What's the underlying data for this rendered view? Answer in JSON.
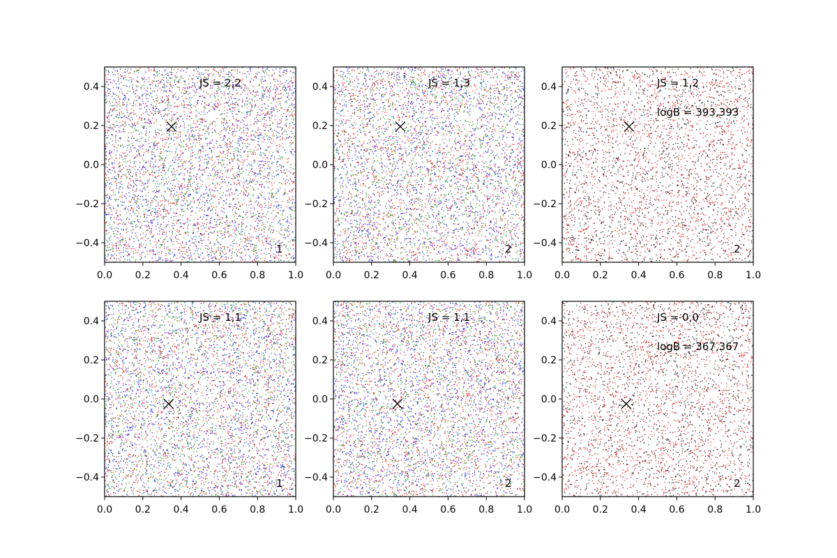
{
  "colors": {
    "red": "#ff0000",
    "green": "#008000",
    "blue": "#0000ff",
    "black": "#000000",
    "marker": "#000000"
  },
  "chart_data": [
    {
      "type": "scatter",
      "panel": "top-left",
      "xlim": [
        0.0,
        1.0
      ],
      "ylim": [
        -0.5,
        0.5
      ],
      "x_ticks": [
        0.0,
        0.2,
        0.4,
        0.6,
        0.8,
        1.0
      ],
      "y_ticks": [
        -0.4,
        -0.2,
        0.0,
        0.2,
        0.4
      ],
      "x_tick_labels": [
        "0.0",
        "0.2",
        "0.4",
        "0.6",
        "0.8",
        "1.0"
      ],
      "y_tick_labels": [
        "−0.4",
        "−0.2",
        "0.0",
        "0.2",
        "0.4"
      ],
      "point_colors": [
        "red",
        "green",
        "blue"
      ],
      "point_count_approx": 5000,
      "marker": {
        "x": 0.35,
        "y": 0.195,
        "symbol": "x"
      },
      "annotations": [
        "JS = 2,2"
      ],
      "corner_label": "1",
      "grid": false
    },
    {
      "type": "scatter",
      "panel": "top-middle",
      "xlim": [
        0.0,
        1.0
      ],
      "ylim": [
        -0.5,
        0.5
      ],
      "x_ticks": [
        0.0,
        0.2,
        0.4,
        0.6,
        0.8,
        1.0
      ],
      "y_ticks": [
        -0.4,
        -0.2,
        0.0,
        0.2,
        0.4
      ],
      "x_tick_labels": [
        "0.0",
        "0.2",
        "0.4",
        "0.6",
        "0.8",
        "1.0"
      ],
      "y_tick_labels": [
        "−0.4",
        "−0.2",
        "0.0",
        "0.2",
        "0.4"
      ],
      "point_colors": [
        "red",
        "green",
        "blue"
      ],
      "point_count_approx": 5000,
      "marker": {
        "x": 0.35,
        "y": 0.195,
        "symbol": "x"
      },
      "annotations": [
        "JS = 1,3"
      ],
      "corner_label": "2",
      "grid": false
    },
    {
      "type": "scatter",
      "panel": "top-right",
      "xlim": [
        0.0,
        1.0
      ],
      "ylim": [
        -0.5,
        0.5
      ],
      "x_ticks": [
        0.0,
        0.2,
        0.4,
        0.6,
        0.8,
        1.0
      ],
      "y_ticks": [
        -0.4,
        -0.2,
        0.0,
        0.2,
        0.4
      ],
      "x_tick_labels": [
        "0.0",
        "0.2",
        "0.4",
        "0.6",
        "0.8",
        "1.0"
      ],
      "y_tick_labels": [
        "−0.4",
        "−0.2",
        "0.0",
        "0.2",
        "0.4"
      ],
      "point_colors": [
        "red",
        "black"
      ],
      "point_count_approx": 3500,
      "marker": {
        "x": 0.35,
        "y": 0.195,
        "symbol": "x"
      },
      "annotations": [
        "JS = 1,2",
        "logB = 393,393"
      ],
      "corner_label": "2",
      "grid": false
    },
    {
      "type": "scatter",
      "panel": "bottom-left",
      "xlim": [
        0.0,
        1.0
      ],
      "ylim": [
        -0.5,
        0.5
      ],
      "x_ticks": [
        0.0,
        0.2,
        0.4,
        0.6,
        0.8,
        1.0
      ],
      "y_ticks": [
        -0.4,
        -0.2,
        0.0,
        0.2,
        0.4
      ],
      "x_tick_labels": [
        "0.0",
        "0.2",
        "0.4",
        "0.6",
        "0.8",
        "1.0"
      ],
      "y_tick_labels": [
        "−0.4",
        "−0.2",
        "0.0",
        "0.2",
        "0.4"
      ],
      "point_colors": [
        "red",
        "green",
        "blue"
      ],
      "point_count_approx": 5000,
      "marker": {
        "x": 0.335,
        "y": -0.025,
        "symbol": "x"
      },
      "annotations": [
        "JS = 1,1"
      ],
      "corner_label": "1",
      "grid": false
    },
    {
      "type": "scatter",
      "panel": "bottom-middle",
      "xlim": [
        0.0,
        1.0
      ],
      "ylim": [
        -0.5,
        0.5
      ],
      "x_ticks": [
        0.0,
        0.2,
        0.4,
        0.6,
        0.8,
        1.0
      ],
      "y_ticks": [
        -0.4,
        -0.2,
        0.0,
        0.2,
        0.4
      ],
      "x_tick_labels": [
        "0.0",
        "0.2",
        "0.4",
        "0.6",
        "0.8",
        "1.0"
      ],
      "y_tick_labels": [
        "−0.4",
        "−0.2",
        "0.0",
        "0.2",
        "0.4"
      ],
      "point_colors": [
        "red",
        "green",
        "blue"
      ],
      "point_count_approx": 5000,
      "marker": {
        "x": 0.335,
        "y": -0.025,
        "symbol": "x"
      },
      "annotations": [
        "JS = 1,1"
      ],
      "corner_label": "2",
      "grid": false
    },
    {
      "type": "scatter",
      "panel": "bottom-right",
      "xlim": [
        0.0,
        1.0
      ],
      "ylim": [
        -0.5,
        0.5
      ],
      "x_ticks": [
        0.0,
        0.2,
        0.4,
        0.6,
        0.8,
        1.0
      ],
      "y_ticks": [
        -0.4,
        -0.2,
        0.0,
        0.2,
        0.4
      ],
      "x_tick_labels": [
        "0.0",
        "0.2",
        "0.4",
        "0.6",
        "0.8",
        "1.0"
      ],
      "y_tick_labels": [
        "−0.4",
        "−0.2",
        "0.0",
        "0.2",
        "0.4"
      ],
      "point_colors": [
        "red",
        "black"
      ],
      "point_count_approx": 3500,
      "marker": {
        "x": 0.335,
        "y": -0.025,
        "symbol": "x"
      },
      "annotations": [
        "JS = 0,0",
        "logB = 367,367"
      ],
      "corner_label": "2",
      "grid": false
    }
  ]
}
